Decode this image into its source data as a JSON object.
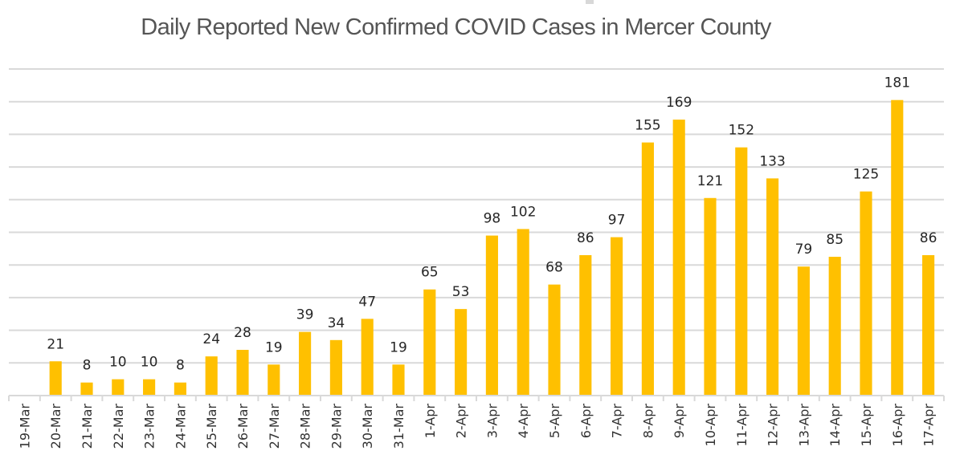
{
  "chart_data": {
    "type": "bar",
    "title": "Daily Reported New Confirmed COVID Cases in Mercer County",
    "xlabel": "",
    "ylabel": "",
    "ylim": [
      0,
      200
    ],
    "grid": true,
    "grid_step": 20,
    "y_tick_labels_shown": false,
    "legend": "none",
    "bar_color": "#FFC000",
    "categories": [
      "19-Mar",
      "20-Mar",
      "21-Mar",
      "22-Mar",
      "23-Mar",
      "24-Mar",
      "25-Mar",
      "26-Mar",
      "27-Mar",
      "28-Mar",
      "29-Mar",
      "30-Mar",
      "31-Mar",
      "1-Apr",
      "2-Apr",
      "3-Apr",
      "4-Apr",
      "5-Apr",
      "6-Apr",
      "7-Apr",
      "8-Apr",
      "9-Apr",
      "10-Apr",
      "11-Apr",
      "12-Apr",
      "13-Apr",
      "14-Apr",
      "15-Apr",
      "16-Apr",
      "17-Apr"
    ],
    "values": [
      null,
      21,
      8,
      10,
      10,
      8,
      24,
      28,
      19,
      39,
      34,
      47,
      19,
      65,
      53,
      98,
      102,
      68,
      86,
      97,
      155,
      169,
      121,
      152,
      133,
      79,
      85,
      125,
      181,
      86
    ],
    "data_labels": [
      "",
      "21",
      "8",
      "10",
      "10",
      "8",
      "24",
      "28",
      "19",
      "39",
      "34",
      "47",
      "19",
      "65",
      "53",
      "98",
      "102",
      "68",
      "86",
      "97",
      "155",
      "169",
      "121",
      "152",
      "133",
      "79",
      "85",
      "125",
      "181",
      "86"
    ]
  }
}
